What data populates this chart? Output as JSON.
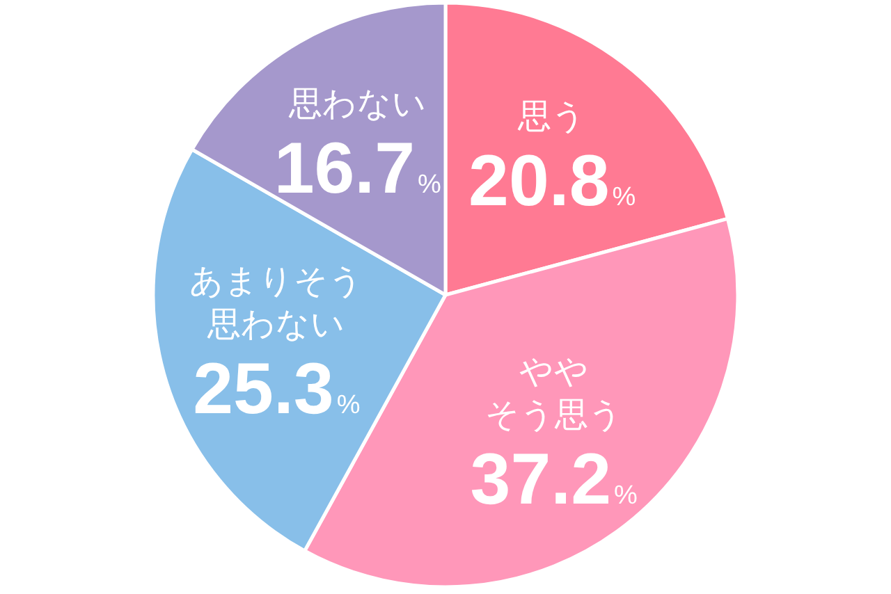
{
  "chart_data": {
    "type": "pie",
    "categories": [
      "思う",
      "ややそう思う",
      "あまりそう思わない",
      "思わない"
    ],
    "values": [
      20.8,
      37.2,
      25.3,
      16.7
    ],
    "colors": [
      "#ff7a93",
      "#ff97b9",
      "#88bfe9",
      "#a598cc"
    ],
    "value_labels": [
      "20.8%",
      "37.2%",
      "25.3%",
      "16.7%"
    ]
  }
}
